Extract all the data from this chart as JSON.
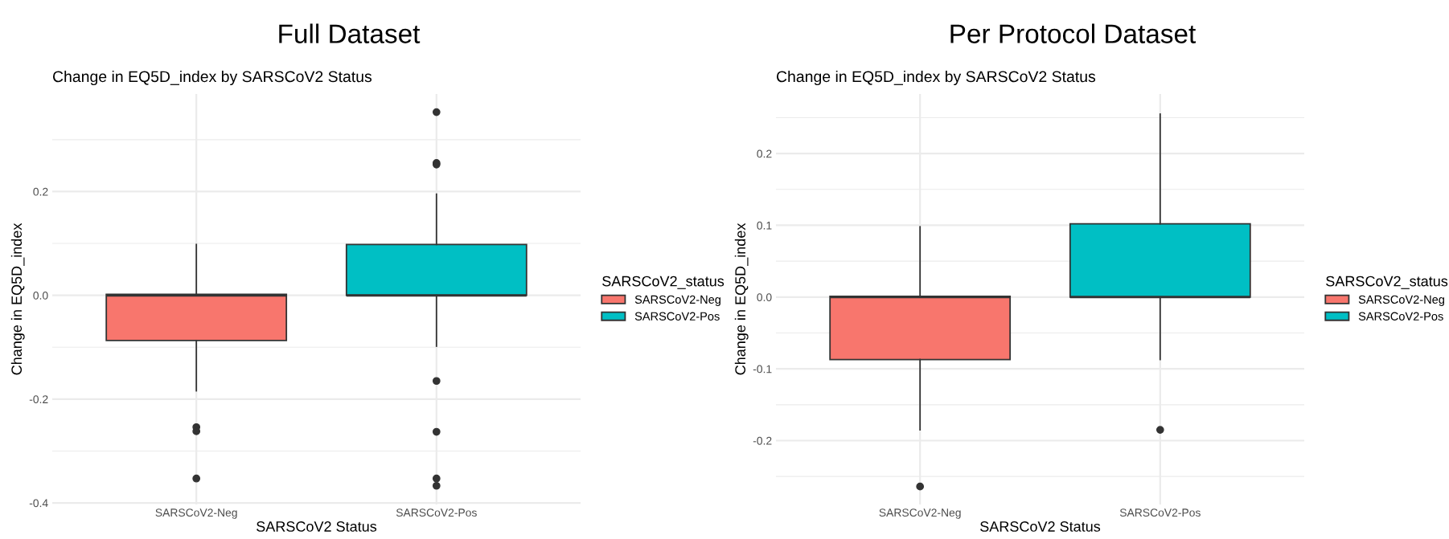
{
  "chart_data": [
    {
      "type": "box",
      "title": "Full Dataset",
      "subtitle": "Change in EQ5D_index by SARSCoV2 Status",
      "xlabel": "SARSCoV2 Status",
      "ylabel": "Change in EQ5D_index",
      "legend_title": "SARSCoV2_status",
      "legend": "right",
      "grid": true,
      "categories": [
        "SARSCoV2-Neg",
        "SARSCoV2-Pos"
      ],
      "series": [
        {
          "name": "SARSCoV2-Neg",
          "color": "#f8766d",
          "boxes": [
            {
              "low": -0.184,
              "q1": -0.087,
              "median": 0.0,
              "q3": 0.002,
              "high": 0.098,
              "outliers": [
                -0.254,
                -0.262,
                -0.353
              ]
            },
            null
          ]
        },
        {
          "name": "SARSCoV2-Pos",
          "color": "#00bfc4",
          "boxes": [
            null,
            {
              "low": -0.098,
              "q1": 0.0,
              "median": 0.0,
              "q3": 0.098,
              "high": 0.195,
              "outliers": [
                0.353,
                0.255,
                0.252,
                -0.165,
                -0.263,
                -0.353,
                -0.367
              ]
            }
          ]
        }
      ],
      "ylim": [
        -0.403,
        0.388
      ],
      "yticks": [
        {
          "value": -0.4,
          "label": "-0.4"
        },
        {
          "value": -0.3,
          "label": null
        },
        {
          "value": -0.2,
          "label": "-0.2"
        },
        {
          "value": -0.1,
          "label": null
        },
        {
          "value": 0.0,
          "label": "0.0"
        },
        {
          "value": 0.1,
          "label": null
        },
        {
          "value": 0.2,
          "label": "0.2"
        },
        {
          "value": 0.3,
          "label": null
        }
      ]
    },
    {
      "type": "box",
      "title": "Per Protocol Dataset",
      "subtitle": "Change in EQ5D_index by SARSCoV2 Status",
      "xlabel": "SARSCoV2 Status",
      "ylabel": "Change in EQ5D_index",
      "legend_title": "SARSCoV2_status",
      "legend": "right",
      "grid": true,
      "categories": [
        "SARSCoV2-Neg",
        "SARSCoV2-Pos"
      ],
      "series": [
        {
          "name": "SARSCoV2-Neg",
          "color": "#f8766d",
          "boxes": [
            {
              "low": -0.185,
              "q1": -0.087,
              "median": 0.0,
              "q3": 0.001,
              "high": 0.098,
              "outliers": [
                -0.264
              ]
            },
            null
          ]
        },
        {
          "name": "SARSCoV2-Pos",
          "color": "#00bfc4",
          "boxes": [
            null,
            {
              "low": -0.087,
              "q1": 0.0,
              "median": 0.0,
              "q3": 0.102,
              "high": 0.255,
              "outliers": [
                -0.185
              ]
            }
          ]
        }
      ],
      "ylim": [
        -0.289,
        0.283
      ],
      "yticks": [
        {
          "value": -0.25,
          "label": null
        },
        {
          "value": -0.2,
          "label": "-0.2"
        },
        {
          "value": -0.15,
          "label": null
        },
        {
          "value": -0.1,
          "label": "-0.1"
        },
        {
          "value": -0.05,
          "label": null
        },
        {
          "value": 0.0,
          "label": "0.0"
        },
        {
          "value": 0.05,
          "label": null
        },
        {
          "value": 0.1,
          "label": "0.1"
        },
        {
          "value": 0.15,
          "label": null
        },
        {
          "value": 0.2,
          "label": "0.2"
        },
        {
          "value": 0.25,
          "label": null
        }
      ]
    }
  ]
}
